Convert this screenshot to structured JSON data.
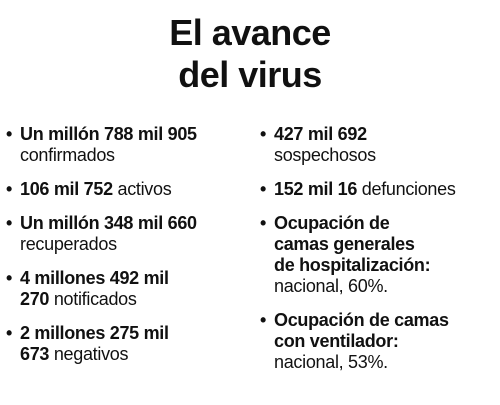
{
  "title": {
    "line1": "El avance",
    "line2": "del virus"
  },
  "left_items": [
    {
      "bold1": "Un millón 788 mil 905",
      "bold2": "",
      "text": "confirmados"
    },
    {
      "bold1": "106 mil 752",
      "bold2": "",
      "text": " activos"
    },
    {
      "bold1": "Un millón 348 mil 660",
      "bold2": "",
      "text": "recuperados"
    },
    {
      "bold1": "4 millones 492 mil",
      "bold2": "270",
      "text": " notificados"
    },
    {
      "bold1": "2 millones 275 mil",
      "bold2": "673",
      "text": " negativos"
    }
  ],
  "right_items": [
    {
      "bold1": "427 mil 692",
      "bold2": "",
      "bold3": "",
      "text": "sospechosos"
    },
    {
      "bold1": "152 mil 16",
      "bold2": "",
      "bold3": "",
      "text": " defunciones"
    },
    {
      "bold1": "Ocupación de",
      "bold2": "camas generales",
      "bold3": "de hospitalización:",
      "text": "nacional, 60%."
    },
    {
      "bold1": "Ocupación de camas",
      "bold2": "con ventilador:",
      "bold3": "",
      "text": "nacional, 53%."
    }
  ],
  "bullet": "•"
}
